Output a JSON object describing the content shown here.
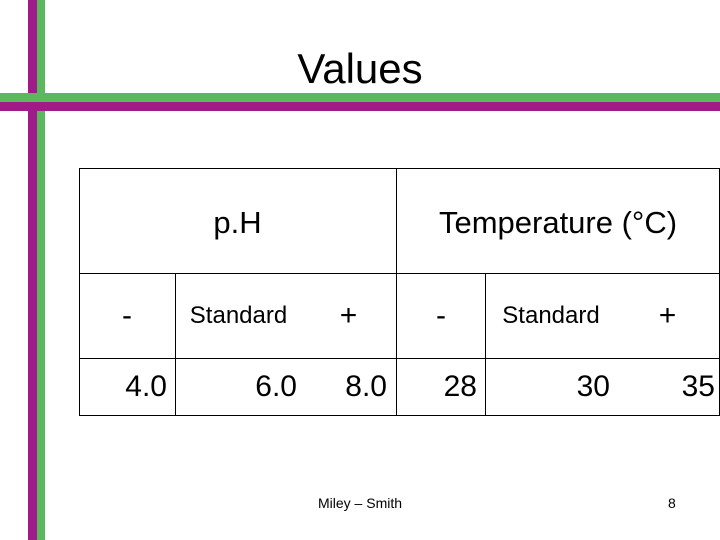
{
  "title": "Values",
  "table": {
    "groups": [
      {
        "label": "p.H",
        "sub": [
          "-",
          "Standard",
          "+"
        ],
        "values": [
          "4.0",
          "6.0",
          "8.0"
        ]
      },
      {
        "label": "Temperature (°C)",
        "sub": [
          "-",
          "Standard",
          "+"
        ],
        "values": [
          "28",
          "30",
          "35"
        ]
      }
    ]
  },
  "footer": {
    "author": "Miley – Smith",
    "page": "8"
  },
  "colors": {
    "accent_purple": "#a01b8a",
    "accent_green": "#5cb85c"
  }
}
